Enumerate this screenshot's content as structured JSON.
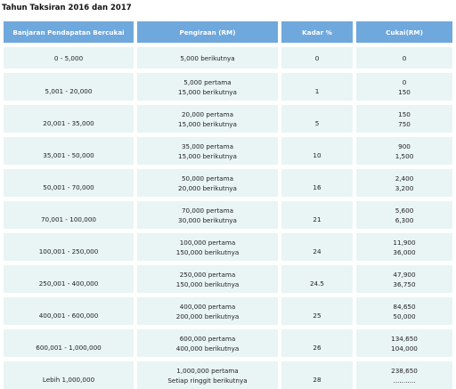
{
  "heading": "Tahun Taksiran 2016 dan 2017",
  "columns": {
    "band": "Banjaran Pendapatan Bercukai",
    "calc": "Pengiraan (RM)",
    "rate": "Kadar %",
    "tax": "Cukai(RM)"
  },
  "rows": [
    {
      "band": "0 - 5,000",
      "calc1": "5,000 berikutnya",
      "calc2": "",
      "rate": "0",
      "tax1": "0",
      "tax2": ""
    },
    {
      "band": "5,001 - 20,000",
      "calc1": "5,000 pertama",
      "calc2": "15,000 berikutnya",
      "rate": "1",
      "tax1": "0",
      "tax2": "150"
    },
    {
      "band": "20,001 - 35,000",
      "calc1": "20,000 pertama",
      "calc2": "15,000 berikutnya",
      "rate": "5",
      "tax1": "150",
      "tax2": "750"
    },
    {
      "band": "35,001 - 50,000",
      "calc1": "35,000 pertama",
      "calc2": "15,000 berikutnya",
      "rate": "10",
      "tax1": "900",
      "tax2": "1,500"
    },
    {
      "band": "50,001 - 70,000",
      "calc1": "50,000 pertama",
      "calc2": "20,000 berikutnya",
      "rate": "16",
      "tax1": "2,400",
      "tax2": "3,200"
    },
    {
      "band": "70,001 - 100,000",
      "calc1": "70,000 pertama",
      "calc2": "30,000 berikutnya",
      "rate": "21",
      "tax1": "5,600",
      "tax2": "6,300"
    },
    {
      "band": "100,001 - 250,000",
      "calc1": "100,000 pertama",
      "calc2": "150,000 berikutnya",
      "rate": "24",
      "tax1": "11,900",
      "tax2": "36,000"
    },
    {
      "band": "250,001 - 400,000",
      "calc1": "250,000 pertama",
      "calc2": "150,000 berikutnya",
      "rate": "24.5",
      "tax1": "47,900",
      "tax2": "36,750"
    },
    {
      "band": "400,001 - 600,000",
      "calc1": "400,000 pertama",
      "calc2": "200,000 berikutnya",
      "rate": "25",
      "tax1": "84,650",
      "tax2": "50,000"
    },
    {
      "band": "600,001 - 1,000,000",
      "calc1": "600,000 pertama",
      "calc2": "400,000 berikutnya",
      "rate": "26",
      "tax1": "134,650",
      "tax2": "104,000"
    },
    {
      "band": "Lebih 1,000,000",
      "calc1": "1,000,000 pertama",
      "calc2": "Setiap ringgit berikutnya",
      "rate": "28",
      "tax1": "238,650",
      "tax2": "..........."
    }
  ]
}
